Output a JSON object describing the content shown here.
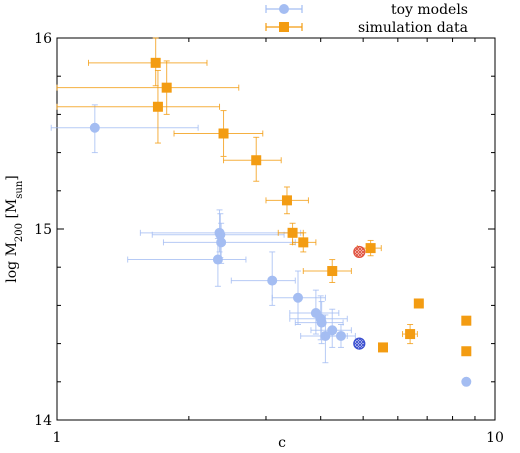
{
  "chart_data": {
    "type": "scatter",
    "xlabel": "c",
    "ylabel": {
      "pre": "log  M",
      "sub1": "200",
      "mid": " [M",
      "sub2": "sun",
      "post": "]"
    },
    "xscale": "log",
    "xlim": [
      1,
      10
    ],
    "ylim": [
      14,
      16
    ],
    "x_ticks": [
      1,
      10
    ],
    "x_tick_labels": [
      "1",
      "10"
    ],
    "y_ticks": [
      14,
      15,
      16
    ],
    "y_tick_labels": [
      "14",
      "15",
      "16"
    ],
    "legend_position": "top-right",
    "series": [
      {
        "name": "toy models",
        "marker": "circle",
        "color": "#a4bdf2",
        "points": [
          {
            "x": 1.22,
            "y": 15.53,
            "xerr": [
              0.97,
              2.1
            ],
            "yerr": [
              15.4,
              15.65
            ]
          },
          {
            "x": 2.35,
            "y": 14.98,
            "xerr": [
              1.55,
              3.6
            ],
            "yerr": [
              14.88,
              15.1
            ]
          },
          {
            "x": 2.36,
            "y": 14.97,
            "xerr": [
              1.65,
              3.3
            ],
            "yerr": [
              14.85,
              15.08
            ]
          },
          {
            "x": 2.37,
            "y": 14.93,
            "xerr": [
              1.75,
              3.5
            ],
            "yerr": [
              14.82,
              15.03
            ]
          },
          {
            "x": 2.33,
            "y": 14.84,
            "xerr": [
              1.45,
              2.7
            ],
            "yerr": [
              14.7,
              14.95
            ]
          },
          {
            "x": 3.1,
            "y": 14.73,
            "xerr": [
              2.5,
              3.5
            ],
            "yerr": [
              14.6,
              14.88
            ]
          },
          {
            "x": 3.55,
            "y": 14.64,
            "xerr": [
              3.1,
              4.1
            ],
            "yerr": [
              14.5,
              14.78
            ]
          },
          {
            "x": 3.9,
            "y": 14.56,
            "xerr": [
              3.4,
              4.4
            ],
            "yerr": [
              14.45,
              14.68
            ]
          },
          {
            "x": 4.0,
            "y": 14.53,
            "xerr": [
              3.4,
              4.6
            ],
            "yerr": [
              14.42,
              14.65
            ]
          },
          {
            "x": 4.02,
            "y": 14.51,
            "xerr": [
              3.5,
              4.5
            ],
            "yerr": [
              14.4,
              14.62
            ]
          },
          {
            "x": 4.25,
            "y": 14.47,
            "xerr": [
              3.8,
              4.7
            ],
            "yerr": [
              14.38,
              14.58
            ]
          },
          {
            "x": 4.1,
            "y": 14.44,
            "xerr": [
              3.6,
              4.6
            ],
            "yerr": [
              14.3,
              14.55
            ]
          },
          {
            "x": 4.45,
            "y": 14.44,
            "xerr": [
              4.1,
              4.8
            ],
            "yerr": [
              14.38,
              14.5
            ]
          },
          {
            "x": 8.6,
            "y": 14.2,
            "xerr": [
              8.6,
              8.6
            ],
            "yerr": [
              14.2,
              14.2
            ]
          }
        ]
      },
      {
        "name": "simulation data",
        "marker": "square",
        "color": "#f39c12",
        "points": [
          {
            "x": 1.68,
            "y": 15.87,
            "xerr": [
              1.18,
              2.2
            ],
            "yerr": [
              15.75,
              16.0
            ]
          },
          {
            "x": 1.78,
            "y": 15.74,
            "xerr": [
              1.0,
              2.6
            ],
            "yerr": [
              15.6,
              15.88
            ]
          },
          {
            "x": 1.7,
            "y": 15.64,
            "xerr": [
              1.0,
              2.35
            ],
            "yerr": [
              15.45,
              15.83
            ]
          },
          {
            "x": 2.4,
            "y": 15.5,
            "xerr": [
              1.85,
              2.95
            ],
            "yerr": [
              15.38,
              15.62
            ]
          },
          {
            "x": 2.85,
            "y": 15.36,
            "xerr": [
              2.4,
              3.25
            ],
            "yerr": [
              15.25,
              15.48
            ]
          },
          {
            "x": 3.35,
            "y": 15.15,
            "xerr": [
              3.0,
              3.75
            ],
            "yerr": [
              15.08,
              15.22
            ]
          },
          {
            "x": 3.45,
            "y": 14.98,
            "xerr": [
              3.2,
              3.65
            ],
            "yerr": [
              14.92,
              15.03
            ]
          },
          {
            "x": 3.65,
            "y": 14.93,
            "xerr": [
              3.45,
              3.9
            ],
            "yerr": [
              14.88,
              14.98
            ]
          },
          {
            "x": 4.25,
            "y": 14.78,
            "xerr": [
              3.65,
              4.7
            ],
            "yerr": [
              14.72,
              14.84
            ]
          },
          {
            "x": 5.2,
            "y": 14.9,
            "xerr": [
              4.85,
              5.5
            ],
            "yerr": [
              14.86,
              14.94
            ]
          },
          {
            "x": 5.55,
            "y": 14.38,
            "xerr": [
              5.55,
              5.55
            ],
            "yerr": [
              14.38,
              14.38
            ]
          },
          {
            "x": 6.7,
            "y": 14.61,
            "xerr": [
              6.55,
              6.85
            ],
            "yerr": [
              14.59,
              14.63
            ]
          },
          {
            "x": 6.4,
            "y": 14.45,
            "xerr": [
              6.15,
              6.65
            ],
            "yerr": [
              14.4,
              14.5
            ]
          },
          {
            "x": 8.6,
            "y": 14.52,
            "xerr": [
              8.6,
              8.6
            ],
            "yerr": [
              14.52,
              14.52
            ]
          },
          {
            "x": 8.6,
            "y": 14.36,
            "xerr": [
              8.6,
              8.6
            ],
            "yerr": [
              14.36,
              14.36
            ]
          }
        ]
      }
    ],
    "highlighted_points": [
      {
        "x": 4.9,
        "y": 14.88,
        "color": "#e0523f",
        "style": "hatched-circle"
      },
      {
        "x": 4.9,
        "y": 14.4,
        "color": "#3b4fd0",
        "style": "hatched-circle"
      }
    ]
  }
}
